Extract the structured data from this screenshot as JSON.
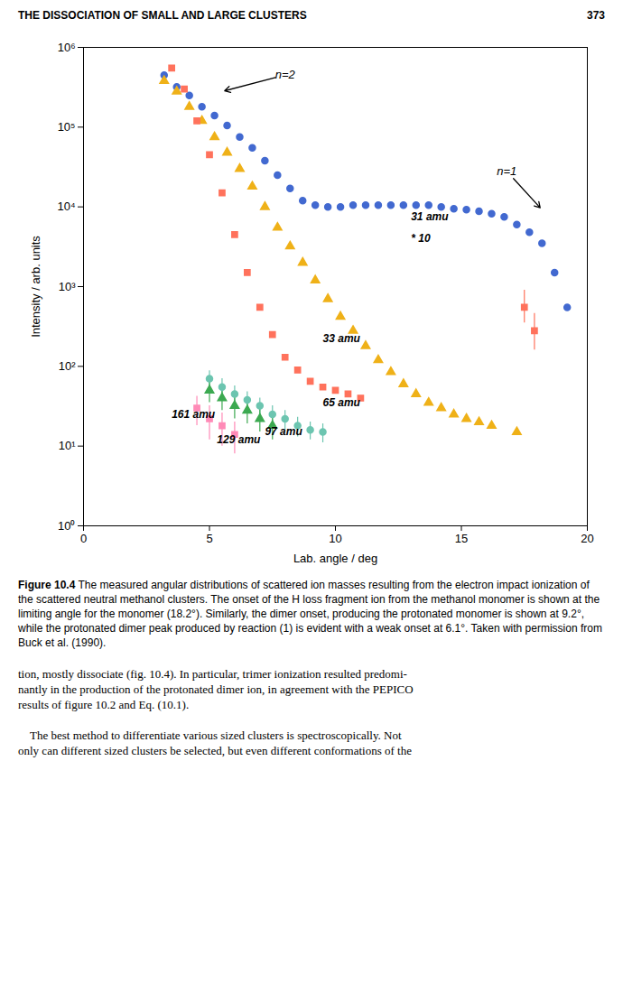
{
  "header": {
    "title": "THE DISSOCIATION OF SMALL AND LARGE CLUSTERS",
    "page_number": "373"
  },
  "chart_data": {
    "type": "scatter",
    "xlabel": "Lab. angle / deg",
    "ylabel": "Intensity / arb. units",
    "xlim": [
      0,
      20
    ],
    "ylim": [
      1,
      1000000
    ],
    "xticks": [
      0,
      5,
      10,
      15,
      20
    ],
    "yticks": [
      {
        "value": 1,
        "label": "10⁰"
      },
      {
        "value": 10,
        "label": "10¹"
      },
      {
        "value": 100,
        "label": "10²"
      },
      {
        "value": 1000,
        "label": "10³"
      },
      {
        "value": 10000,
        "label": "10⁴"
      },
      {
        "value": 100000,
        "label": "10⁵"
      },
      {
        "value": 1000000,
        "label": "10⁶"
      }
    ],
    "log": "y",
    "grid": false,
    "series": [
      {
        "name": "31 amu",
        "marker": "circle",
        "x": [
          3.2,
          3.7,
          4.2,
          4.7,
          5.2,
          5.7,
          6.2,
          6.7,
          7.2,
          7.7,
          8.2,
          8.7,
          9.2,
          9.7,
          10.2,
          10.7,
          11.2,
          11.7,
          12.2,
          12.7,
          13.2,
          13.7,
          14.2,
          14.7,
          15.2,
          15.7,
          16.2,
          16.7,
          17.2,
          17.7,
          18.2,
          18.7,
          19.2
        ],
        "y": [
          450000,
          320000,
          250000,
          180000,
          140000,
          105000,
          75000,
          55000,
          38000,
          25000,
          17000,
          12000,
          10500,
          10000,
          10000,
          10500,
          10500,
          10500,
          10500,
          10500,
          10500,
          10500,
          10000,
          9500,
          9200,
          8800,
          8200,
          7500,
          6000,
          4800,
          3500,
          1500,
          550
        ]
      },
      {
        "name": "33 amu",
        "marker": "triangle",
        "x": [
          3.2,
          3.7,
          4.2,
          4.7,
          5.2,
          5.7,
          6.2,
          6.7,
          7.2,
          7.7,
          8.2,
          8.7,
          9.2,
          9.7,
          10.2,
          10.7,
          11.2,
          11.7,
          12.2,
          12.7,
          13.2,
          13.7,
          14.2,
          14.7,
          15.2,
          15.7,
          16.2,
          17.2
        ],
        "y": [
          380000,
          280000,
          180000,
          120000,
          75000,
          48000,
          30000,
          18000,
          10000,
          5500,
          3200,
          2000,
          1200,
          700,
          420,
          280,
          180,
          120,
          85,
          60,
          45,
          35,
          30,
          25,
          22,
          20,
          18,
          15
        ]
      },
      {
        "name": "65 amu",
        "marker": "square",
        "x": [
          3.5,
          4.0,
          4.5,
          5.0,
          5.5,
          6.0,
          6.5,
          7.0,
          7.5,
          8.0,
          8.5,
          9.0,
          9.5,
          10.0,
          10.5,
          11.0,
          17.5,
          17.9
        ],
        "y": [
          550000,
          300000,
          120000,
          45000,
          15000,
          4500,
          1500,
          550,
          250,
          130,
          90,
          65,
          55,
          50,
          45,
          40,
          550,
          280
        ],
        "yerr_low": [
          null,
          null,
          null,
          null,
          null,
          null,
          null,
          null,
          null,
          null,
          null,
          null,
          null,
          null,
          null,
          null,
          200,
          120
        ],
        "yerr_high": [
          null,
          null,
          null,
          null,
          null,
          null,
          null,
          null,
          null,
          null,
          null,
          null,
          null,
          null,
          null,
          null,
          350,
          180
        ]
      },
      {
        "name": "97 amu",
        "marker": "circle",
        "x": [
          5.0,
          5.5,
          6.0,
          6.5,
          7.0,
          7.5,
          8.0,
          8.5,
          9.0,
          9.5
        ],
        "y": [
          70,
          55,
          45,
          38,
          32,
          25,
          22,
          18,
          16,
          15
        ],
        "yerr": [
          18,
          15,
          12,
          10,
          8,
          7,
          6,
          5,
          4,
          4
        ]
      },
      {
        "name": "129 amu",
        "marker": "triangle",
        "x": [
          5.0,
          5.5,
          6.0,
          6.5,
          7.0,
          7.5
        ],
        "y": [
          50,
          40,
          32,
          28,
          22,
          18
        ],
        "yerr": [
          15,
          12,
          10,
          9,
          7,
          6
        ]
      },
      {
        "name": "161 amu",
        "marker": "square",
        "x": [
          4.5,
          5.0,
          5.5,
          6.0
        ],
        "y": [
          30,
          22,
          18,
          14
        ],
        "yerr": [
          12,
          10,
          8,
          6
        ]
      }
    ],
    "annotations": [
      {
        "text": "n=2",
        "x": 8.0,
        "y": 450000,
        "arrow_to": [
          5.5,
          280000
        ]
      },
      {
        "text": "n=1",
        "x": 16.8,
        "y": 28000,
        "arrow_to": [
          18.2,
          9200
        ]
      },
      {
        "text": "31 amu",
        "x": 13.0,
        "y": 7500
      },
      {
        "text": "* 10",
        "x": 13.0,
        "y": 4000
      },
      {
        "text": "33 amu",
        "x": 9.5,
        "y": 220
      },
      {
        "text": "65 amu",
        "x": 9.5,
        "y": 35
      },
      {
        "text": "97 amu",
        "x": 7.2,
        "y": 15
      },
      {
        "text": "129 amu",
        "x": 5.3,
        "y": 12
      },
      {
        "text": "161 amu",
        "x": 3.5,
        "y": 25
      }
    ]
  },
  "caption": {
    "bold": "Figure 10.4",
    "text": "The measured angular distributions of scattered ion masses resulting from the electron impact ionization of the scattered neutral methanol clusters. The onset of the H loss fragment ion from the methanol monomer is shown at the limiting angle for the monomer (18.2°). Similarly, the dimer onset, producing the protonated monomer is shown at 9.2°, while the protonated dimer peak produced by reaction (1) is evident with a weak onset at 6.1°. Taken with permission from Buck et al. (1990)."
  },
  "body": [
    [
      "tion, mostly dissociate (fig. 10.4). In particular, trimer ionization resulted predomi-",
      "nantly in the production of the protonated dimer ion, in agreement with the PEPICO",
      "results of figure 10.2 and Eq. (10.1)."
    ],
    [
      "    The best method to differentiate various sized clusters is spectroscopically. Not",
      "only can different sized clusters be selected, but even different conformations of the"
    ]
  ]
}
